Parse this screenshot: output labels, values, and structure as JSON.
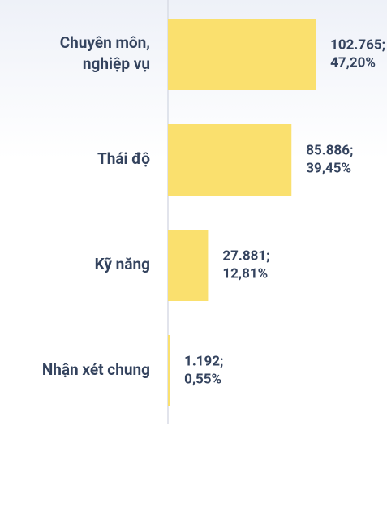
{
  "chart_data": {
    "type": "bar",
    "orientation": "horizontal",
    "categories": [
      "Chuyên môn, nghiệp vụ",
      "Thái độ",
      "Kỹ năng",
      "Nhận xét chung"
    ],
    "values": [
      102765,
      85886,
      27881,
      1192
    ],
    "value_labels": [
      [
        "102.765;",
        "47,20%"
      ],
      [
        "85.886;",
        "39,45%"
      ],
      [
        "27.881;",
        "12,81%"
      ],
      [
        "1.192;",
        "0,55%"
      ]
    ],
    "color": "#fae06e",
    "xlim": [
      0,
      110000
    ]
  }
}
